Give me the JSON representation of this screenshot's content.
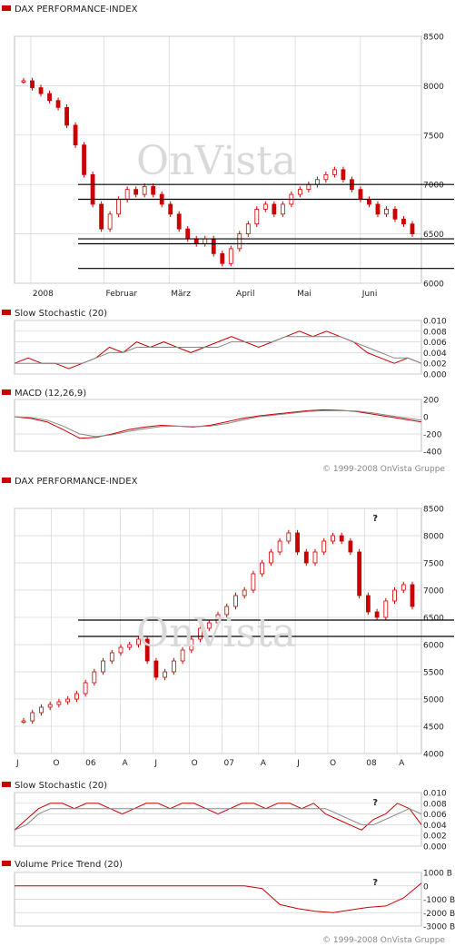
{
  "watermark": "OnVista",
  "copyright": "© 1999-2008 OnVista Gruppe",
  "colors": {
    "price": "#cc0000",
    "grid": "#d4d4d4",
    "signal": "#888888",
    "frame": "#bbbbbb"
  },
  "chart_data": [
    {
      "type": "candlestick",
      "title": "DAX PERFORMANCE-INDEX",
      "xticks": [
        "2008",
        "Februar",
        "März",
        "April",
        "Mai",
        "Juni"
      ],
      "yticks": [
        "8500",
        "8000",
        "7500",
        "7000",
        "6500",
        "6000"
      ],
      "ylim": [
        6000,
        8500
      ],
      "series": [
        {
          "values": [
            8050,
            7980,
            7920,
            7850,
            7780,
            7600,
            7400,
            7100,
            6800,
            6550,
            6700,
            6850,
            6950,
            6900,
            6980,
            6900,
            6800,
            6700,
            6550,
            6450,
            6400,
            6450,
            6300,
            6200,
            6350,
            6500,
            6600,
            6750,
            6800,
            6700,
            6800,
            6900,
            6950,
            7000,
            7050,
            7100,
            7150,
            7050,
            6950,
            6850,
            6800,
            6700,
            6750,
            6650,
            6600,
            6500
          ]
        }
      ],
      "trendlines": [
        {
          "y": 7000
        },
        {
          "y": 6850
        },
        {
          "y": 6450
        },
        {
          "y": 6400
        },
        {
          "y": 6150
        }
      ]
    },
    {
      "type": "line",
      "title": "Slow Stochastic (20)",
      "yticks": [
        "0.010",
        "0.008",
        "0.006",
        "0.004",
        "0.002",
        "0.000"
      ],
      "ylim": [
        0,
        0.01
      ],
      "series": [
        {
          "values": [
            0.002,
            0.003,
            0.002,
            0.002,
            0.001,
            0.002,
            0.003,
            0.005,
            0.004,
            0.006,
            0.005,
            0.006,
            0.005,
            0.004,
            0.005,
            0.006,
            0.007,
            0.006,
            0.005,
            0.006,
            0.007,
            0.008,
            0.007,
            0.008,
            0.007,
            0.006,
            0.004,
            0.003,
            0.002,
            0.003,
            0.002
          ]
        },
        {
          "values": [
            0.002,
            0.002,
            0.002,
            0.002,
            0.002,
            0.002,
            0.003,
            0.004,
            0.004,
            0.005,
            0.005,
            0.005,
            0.005,
            0.005,
            0.005,
            0.005,
            0.006,
            0.006,
            0.006,
            0.006,
            0.007,
            0.007,
            0.007,
            0.007,
            0.007,
            0.006,
            0.005,
            0.004,
            0.003,
            0.003,
            0.002
          ]
        }
      ]
    },
    {
      "type": "line",
      "title": "MACD (12,26,9)",
      "yticks": [
        "200",
        "0",
        "-200",
        "-400"
      ],
      "ylim": [
        -400,
        200
      ],
      "series": [
        {
          "values": [
            0,
            -20,
            -60,
            -150,
            -250,
            -240,
            -200,
            -150,
            -120,
            -100,
            -110,
            -120,
            -100,
            -60,
            -20,
            10,
            30,
            50,
            70,
            80,
            75,
            60,
            30,
            0,
            -30,
            -60
          ]
        },
        {
          "values": [
            0,
            -10,
            -40,
            -110,
            -200,
            -230,
            -210,
            -170,
            -140,
            -115,
            -110,
            -115,
            -110,
            -80,
            -40,
            0,
            20,
            40,
            60,
            70,
            72,
            65,
            45,
            15,
            -15,
            -40
          ]
        }
      ]
    },
    {
      "type": "candlestick",
      "title": "DAX PERFORMANCE-INDEX",
      "xticks": [
        "J",
        "O",
        "06",
        "A",
        "J",
        "O",
        "07",
        "A",
        "J",
        "O",
        "08",
        "A"
      ],
      "yticks": [
        "8500",
        "8000",
        "7500",
        "7000",
        "6500",
        "6000",
        "5500",
        "5000",
        "4500",
        "4000"
      ],
      "ylim": [
        4000,
        8500
      ],
      "series": [
        {
          "values": [
            4600,
            4750,
            4850,
            4900,
            4950,
            5000,
            5100,
            5300,
            5500,
            5700,
            5850,
            5950,
            6000,
            6100,
            5700,
            5400,
            5500,
            5700,
            5900,
            6100,
            6300,
            6400,
            6550,
            6700,
            6900,
            7000,
            7300,
            7500,
            7700,
            7900,
            8050,
            7700,
            7500,
            7700,
            7900,
            8000,
            7900,
            7700,
            6900,
            6600,
            6500,
            6800,
            7000,
            7100,
            6700
          ]
        }
      ],
      "trendlines": [
        {
          "y": 6450
        },
        {
          "y": 6150
        }
      ],
      "annotations": [
        "?"
      ]
    },
    {
      "type": "line",
      "title": "Slow Stochastic (20)",
      "yticks": [
        "0.010",
        "0.008",
        "0.006",
        "0.004",
        "0.002",
        "0.000"
      ],
      "ylim": [
        0,
        0.01
      ],
      "series": [
        {
          "values": [
            0.003,
            0.005,
            0.007,
            0.008,
            0.008,
            0.007,
            0.008,
            0.008,
            0.007,
            0.006,
            0.007,
            0.008,
            0.008,
            0.007,
            0.008,
            0.008,
            0.007,
            0.006,
            0.007,
            0.008,
            0.008,
            0.007,
            0.008,
            0.008,
            0.007,
            0.008,
            0.006,
            0.005,
            0.004,
            0.003,
            0.005,
            0.006,
            0.008,
            0.007,
            0.004
          ]
        },
        {
          "values": [
            0.003,
            0.004,
            0.006,
            0.007,
            0.007,
            0.007,
            0.007,
            0.007,
            0.007,
            0.007,
            0.007,
            0.007,
            0.007,
            0.007,
            0.007,
            0.007,
            0.007,
            0.007,
            0.007,
            0.007,
            0.007,
            0.007,
            0.007,
            0.007,
            0.007,
            0.007,
            0.007,
            0.006,
            0.005,
            0.004,
            0.004,
            0.005,
            0.006,
            0.007,
            0.006
          ]
        }
      ],
      "annotations": [
        "?"
      ]
    },
    {
      "type": "line",
      "title": "Volume Price Trend (20)",
      "yticks": [
        "1000 B",
        "0",
        "-1000 B",
        "-2000 B",
        "-3000 B"
      ],
      "ylim": [
        -3000,
        1000
      ],
      "series": [
        {
          "values": [
            0,
            0,
            0,
            0,
            0,
            0,
            0,
            0,
            0,
            0,
            0,
            0,
            0,
            0,
            -200,
            -1400,
            -1700,
            -1900,
            -2000,
            -1800,
            -1600,
            -1500,
            -900,
            200
          ]
        }
      ],
      "annotations": [
        "?"
      ]
    }
  ]
}
